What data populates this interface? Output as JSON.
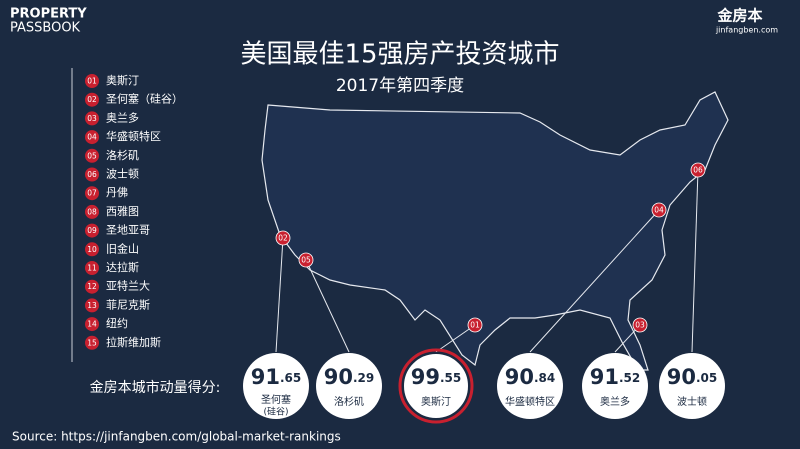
{
  "header": {
    "brand_top": "PROPERTY",
    "brand_bottom": "PASSBOOK",
    "logo_name": "金房本",
    "logo_url": "jinfangben.com",
    "title": "美国最佳15强房产投资城市",
    "subtitle": "2017年第四季度"
  },
  "list": {
    "items": [
      {
        "number": "01",
        "name": "奥斯汀"
      },
      {
        "number": "02",
        "name": "圣何塞（硅谷）"
      },
      {
        "number": "03",
        "name": "奥兰多"
      },
      {
        "number": "04",
        "name": "华盛顿特区"
      },
      {
        "number": "05",
        "name": "洛杉矶"
      },
      {
        "number": "06",
        "name": "波士顿"
      },
      {
        "number": "07",
        "name": "丹佛"
      },
      {
        "number": "08",
        "name": "西雅图"
      },
      {
        "number": "09",
        "name": "圣地亚哥"
      },
      {
        "number": "10",
        "name": "旧金山"
      },
      {
        "number": "11",
        "name": "达拉斯"
      },
      {
        "number": "12",
        "name": "亚特兰大"
      },
      {
        "number": "13",
        "name": "菲尼克斯"
      },
      {
        "number": "14",
        "name": "纽约"
      },
      {
        "number": "15",
        "name": "拉斯维加斯"
      }
    ]
  },
  "scores": {
    "label": "金房本城市动量得分:",
    "items": [
      {
        "whole": "91",
        "fraction": ".65",
        "city": "圣何塞",
        "city_note": "(硅谷)"
      },
      {
        "whole": "90",
        "fraction": ".29",
        "city": "洛杉矶"
      },
      {
        "whole": "99",
        "fraction": ".55",
        "city": "奥斯汀"
      },
      {
        "whole": "90",
        "fraction": ".84",
        "city": "华盛顿特区"
      },
      {
        "whole": "91",
        "fraction": ".52",
        "city": "奥兰多"
      },
      {
        "whole": "90",
        "fraction": ".05",
        "city": "波士顿"
      }
    ]
  },
  "source": "Source: https://jinfangben.com/global-market-rankings"
}
